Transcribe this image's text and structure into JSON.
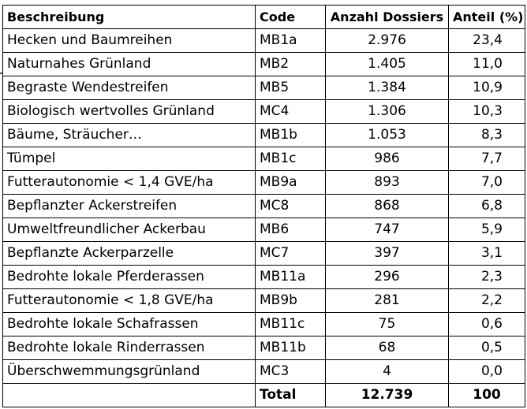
{
  "table": {
    "headers": {
      "description": "Beschreibung",
      "code": "Code",
      "dossiers": "Anzahl Dossiers",
      "share": "Anteil (%)"
    },
    "rows": [
      {
        "description": "Hecken und Baumreihen",
        "code": "MB1a",
        "dossiers": "2.976",
        "share": "23,4"
      },
      {
        "description": "Naturnahes Grünland",
        "code": "MB2",
        "dossiers": "1.405",
        "share": "11,0"
      },
      {
        "description": "Begraste Wendestreifen",
        "code": "MB5",
        "dossiers": "1.384",
        "share": "10,9"
      },
      {
        "description": "Biologisch wertvolles Grünland",
        "code": "MC4",
        "dossiers": "1.306",
        "share": "10,3"
      },
      {
        "description": "Bäume, Sträucher…",
        "code": "MB1b",
        "dossiers": "1.053",
        "share": "8,3"
      },
      {
        "description": "Tümpel",
        "code": "MB1c",
        "dossiers": "986",
        "share": "7,7"
      },
      {
        "description": "Futterautonomie < 1,4 GVE/ha",
        "code": "MB9a",
        "dossiers": "893",
        "share": "7,0"
      },
      {
        "description": "Bepflanzter Ackerstreifen",
        "code": "MC8",
        "dossiers": "868",
        "share": "6,8"
      },
      {
        "description": "Umweltfreundlicher Ackerbau",
        "code": "MB6",
        "dossiers": "747",
        "share": "5,9"
      },
      {
        "description": "Bepflanzte Ackerparzelle",
        "code": "MC7",
        "dossiers": "397",
        "share": "3,1"
      },
      {
        "description": "Bedrohte lokale Pferderassen",
        "code": "MB11a",
        "dossiers": "296",
        "share": "2,3"
      },
      {
        "description": "Futterautonomie < 1,8 GVE/ha",
        "code": "MB9b",
        "dossiers": "281",
        "share": "2,2"
      },
      {
        "description": "Bedrohte lokale Schafrassen",
        "code": "MB11c",
        "dossiers": "75",
        "share": "0,6"
      },
      {
        "description": "Bedrohte lokale Rinderrassen",
        "code": "MB11b",
        "dossiers": "68",
        "share": "0,5"
      },
      {
        "description": "Überschwemmungsgrünland",
        "code": "MC3",
        "dossiers": "4",
        "share": "0,0"
      }
    ],
    "total": {
      "description": "",
      "code": "Total",
      "dossiers": "12.739",
      "share": "100"
    }
  },
  "colors": {
    "border": "#000000",
    "selection_marker": "#1e7a3a"
  }
}
